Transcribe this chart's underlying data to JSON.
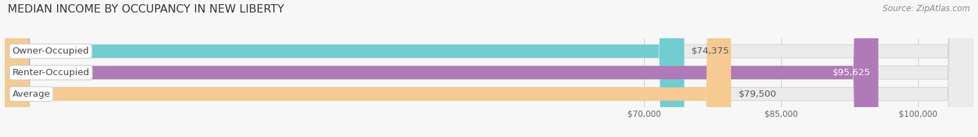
{
  "title": "MEDIAN INCOME BY OCCUPANCY IN NEW LIBERTY",
  "source": "Source: ZipAtlas.com",
  "categories": [
    "Owner-Occupied",
    "Renter-Occupied",
    "Average"
  ],
  "values": [
    74375,
    95625,
    79500
  ],
  "bar_colors": [
    "#72cdd0",
    "#b07ab8",
    "#f5ca93"
  ],
  "bar_labels": [
    "$74,375",
    "$95,625",
    "$79,500"
  ],
  "label_inside": [
    false,
    true,
    false
  ],
  "xmin": 0,
  "xmax": 106000,
  "xticks": [
    70000,
    85000,
    100000
  ],
  "xtick_labels": [
    "$70,000",
    "$85,000",
    "$100,000"
  ],
  "background_color": "#f7f7f7",
  "bar_bg_color": "#ebebeb",
  "bar_height": 0.62,
  "title_fontsize": 11.5,
  "label_fontsize": 9.5,
  "tick_fontsize": 8.5,
  "source_fontsize": 8.5,
  "cat_label_fontsize": 9.5
}
